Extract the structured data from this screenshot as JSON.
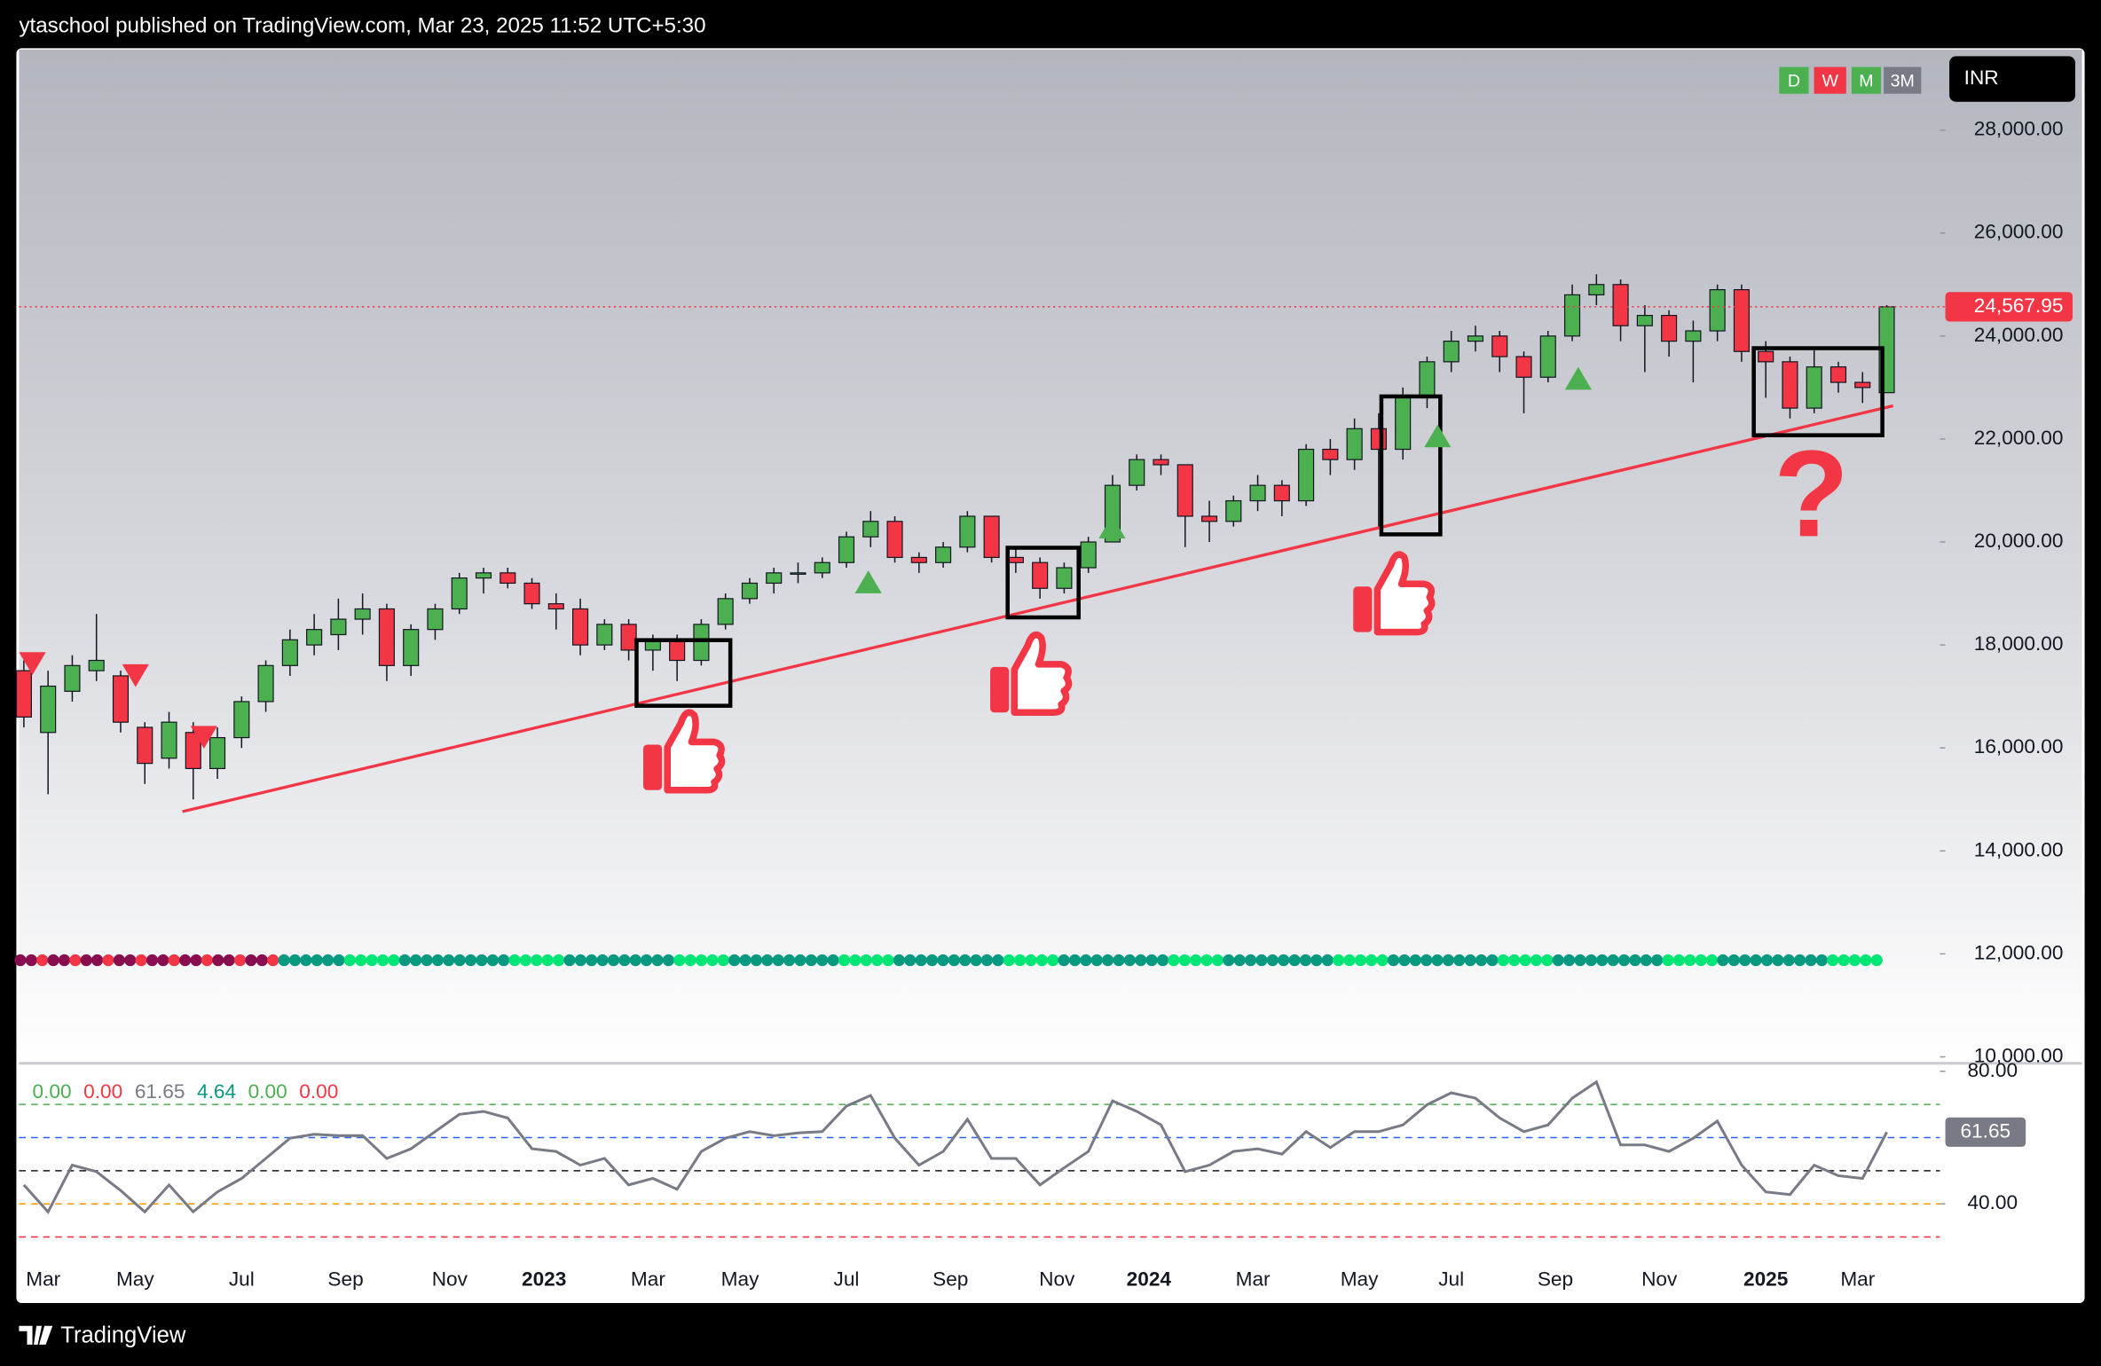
{
  "header": {
    "title": "ytaschool published on TradingView.com, Mar 23, 2025 11:52 UTC+5:30"
  },
  "toolbar": {
    "buttons": [
      "D",
      "W",
      "M",
      "3M"
    ],
    "currency": "INR"
  },
  "annotation": "?",
  "footer": {
    "brand": "TradingView"
  },
  "chart_data": [
    {
      "type": "candlestick",
      "up_color": "#4caf50",
      "down_color": "#f23645",
      "open": [
        17500,
        16300,
        17100,
        17500,
        17400,
        16400,
        15800,
        16300,
        15600,
        16200,
        16900,
        17600,
        18000,
        18200,
        18500,
        18700,
        17600,
        18300,
        18700,
        19300,
        19400,
        19200,
        18800,
        18700,
        18000,
        18400,
        17900,
        18100,
        17700,
        18400,
        18900,
        19200,
        19400,
        19400,
        19600,
        20100,
        20400,
        19700,
        19600,
        19900,
        20500,
        19700,
        19600,
        19100,
        19500,
        20000,
        21100,
        21600,
        21500,
        20500,
        20400,
        20800,
        21100,
        20800,
        21800,
        21600,
        22200,
        21800,
        22800,
        23500,
        23900,
        24000,
        23600,
        23200,
        24000,
        24800,
        25000,
        24200,
        24400,
        23900,
        24100,
        24900,
        23700,
        23500,
        22600,
        23400,
        23100,
        22900
      ],
      "high": [
        17700,
        17500,
        17800,
        18600,
        17500,
        16500,
        16700,
        16500,
        16400,
        17000,
        17700,
        18300,
        18600,
        18900,
        19000,
        18800,
        18400,
        18800,
        19400,
        19500,
        19500,
        19300,
        19000,
        18900,
        18500,
        18500,
        18200,
        18200,
        18500,
        19000,
        19300,
        19500,
        19600,
        19700,
        20200,
        20600,
        20500,
        19800,
        20000,
        20600,
        20500,
        19900,
        19700,
        19600,
        20100,
        21300,
        21700,
        21700,
        21500,
        20800,
        20900,
        21300,
        21200,
        21900,
        22000,
        22400,
        22500,
        23000,
        23600,
        24100,
        24200,
        24100,
        23700,
        24100,
        25000,
        25200,
        25100,
        24600,
        24500,
        24300,
        25000,
        25000,
        23900,
        23600,
        23800,
        23500,
        23300,
        24600
      ],
      "low": [
        16400,
        15100,
        16900,
        17300,
        16300,
        15300,
        15600,
        15000,
        15400,
        16000,
        16700,
        17400,
        17800,
        17900,
        18200,
        17300,
        17400,
        18100,
        18600,
        19000,
        19100,
        18700,
        18300,
        17800,
        17900,
        17700,
        17500,
        17300,
        17600,
        18300,
        18800,
        19000,
        19200,
        19300,
        19500,
        19900,
        19600,
        19400,
        19500,
        19800,
        19600,
        19400,
        18900,
        19000,
        19400,
        20000,
        21000,
        21300,
        19900,
        20000,
        20300,
        20600,
        20500,
        20700,
        21300,
        21400,
        20300,
        21600,
        22600,
        23300,
        23700,
        23300,
        22500,
        23100,
        23900,
        24600,
        23900,
        23300,
        23600,
        23100,
        23900,
        23500,
        22800,
        22400,
        22500,
        22900,
        22700,
        22900
      ],
      "close": [
        16600,
        17200,
        17600,
        17700,
        16500,
        15700,
        16500,
        15600,
        16200,
        16900,
        17600,
        18100,
        18300,
        18500,
        18700,
        17600,
        18300,
        18700,
        19300,
        19400,
        19200,
        18800,
        18700,
        18000,
        18400,
        17900,
        18100,
        17700,
        18400,
        18900,
        19200,
        19400,
        19400,
        19600,
        20100,
        20400,
        19700,
        19600,
        19900,
        20500,
        19700,
        19600,
        19100,
        19500,
        20000,
        21100,
        21600,
        21500,
        20500,
        20400,
        20800,
        21100,
        20800,
        21800,
        21600,
        22200,
        21800,
        22800,
        23500,
        23900,
        24000,
        23600,
        23200,
        24000,
        24800,
        25000,
        24200,
        24400,
        23900,
        24100,
        24900,
        23700,
        23500,
        22600,
        23400,
        23100,
        23000,
        24567.95
      ],
      "xlim": [
        -0.2,
        79.2
      ],
      "xticks": [
        {
          "value": 0.8,
          "label": "Mar"
        },
        {
          "value": 4.6,
          "label": "May"
        },
        {
          "value": 9.0,
          "label": "Jul"
        },
        {
          "value": 13.3,
          "label": "Sep"
        },
        {
          "value": 17.6,
          "label": "Nov"
        },
        {
          "value": 21.5,
          "label": "2023"
        },
        {
          "value": 25.8,
          "label": "Mar"
        },
        {
          "value": 29.6,
          "label": "May"
        },
        {
          "value": 34.0,
          "label": "Jul"
        },
        {
          "value": 38.3,
          "label": "Sep"
        },
        {
          "value": 42.7,
          "label": "Nov"
        },
        {
          "value": 46.5,
          "label": "2024"
        },
        {
          "value": 50.8,
          "label": "Mar"
        },
        {
          "value": 55.2,
          "label": "May"
        },
        {
          "value": 59.0,
          "label": "Jul"
        },
        {
          "value": 63.3,
          "label": "Sep"
        },
        {
          "value": 67.6,
          "label": "Nov"
        },
        {
          "value": 72.0,
          "label": "2025"
        },
        {
          "value": 75.8,
          "label": "Mar"
        }
      ],
      "ylim": [
        9900,
        29590
      ],
      "yticks": [
        {
          "value": 10000,
          "label": "10,000.00"
        },
        {
          "value": 12000,
          "label": "12,000.00"
        },
        {
          "value": 14000,
          "label": "14,000.00"
        },
        {
          "value": 16000,
          "label": "16,000.00"
        },
        {
          "value": 18000,
          "label": "18,000.00"
        },
        {
          "value": 20000,
          "label": "20,000.00"
        },
        {
          "value": 22000,
          "label": "22,000.00"
        },
        {
          "value": 24000,
          "label": "24,000.00"
        },
        {
          "value": 26000,
          "label": "26,000.00"
        },
        {
          "value": 28000,
          "label": "28,000.00"
        }
      ],
      "last_price": {
        "value": 24567.95,
        "label": "24,567.95"
      },
      "last_price_color": "#f23645"
    },
    {
      "type": "line",
      "series": [
        {
          "color": "#787b86",
          "values": [
            45.7,
            37.6,
            51.7,
            49.7,
            44,
            37.6,
            45.7,
            37.6,
            43.6,
            47.7,
            53.7,
            59.8,
            61,
            60.6,
            60.6,
            53.7,
            56.6,
            61.8,
            67,
            67.9,
            65.9,
            56.6,
            55.8,
            51.7,
            53.7,
            45.7,
            47.7,
            44.4,
            55.8,
            59.8,
            61.8,
            60.6,
            61.4,
            61.8,
            69.5,
            72.7,
            59.8,
            51.7,
            55.8,
            65.5,
            53.7,
            53.7,
            45.7,
            50.9,
            55.8,
            71.1,
            67.9,
            63.8,
            49.7,
            51.7,
            55.8,
            56.6,
            55,
            61.8,
            57,
            61.8,
            61.8,
            63.8,
            69.9,
            73.5,
            71.9,
            65.9,
            61.8,
            63.8,
            71.9,
            76.8,
            57.8,
            57.8,
            55.8,
            59.8,
            65,
            51.7,
            43.6,
            42.8,
            51.7,
            48.5,
            47.7,
            61.65
          ]
        }
      ],
      "ylim": [
        23.4,
        82
      ],
      "yticks": [
        {
          "value": 80,
          "label": "80.00"
        },
        {
          "value": 40,
          "label": "40.00"
        }
      ],
      "levels": [
        {
          "value": 70,
          "color": "#4caf50"
        },
        {
          "value": 60,
          "color": "#2962ff"
        },
        {
          "value": 50,
          "color": "#131722"
        },
        {
          "value": 40,
          "color": "#ff9800"
        },
        {
          "value": 30,
          "color": "#f23645"
        }
      ],
      "last_value": {
        "value": 61.65,
        "label": "61.65"
      },
      "legend": [
        {
          "value": 0,
          "label": "0.00",
          "color": "#4caf50"
        },
        {
          "value": 0,
          "label": "0.00",
          "color": "#f23645"
        },
        {
          "value": 61.65,
          "label": "61.65",
          "color": "#787b86"
        },
        {
          "value": 4.64,
          "label": "4.64",
          "color": "#089981"
        },
        {
          "value": 0,
          "label": "0.00",
          "color": "#4caf50"
        },
        {
          "value": 0,
          "label": "0.00",
          "color": "#f23645"
        }
      ]
    }
  ]
}
